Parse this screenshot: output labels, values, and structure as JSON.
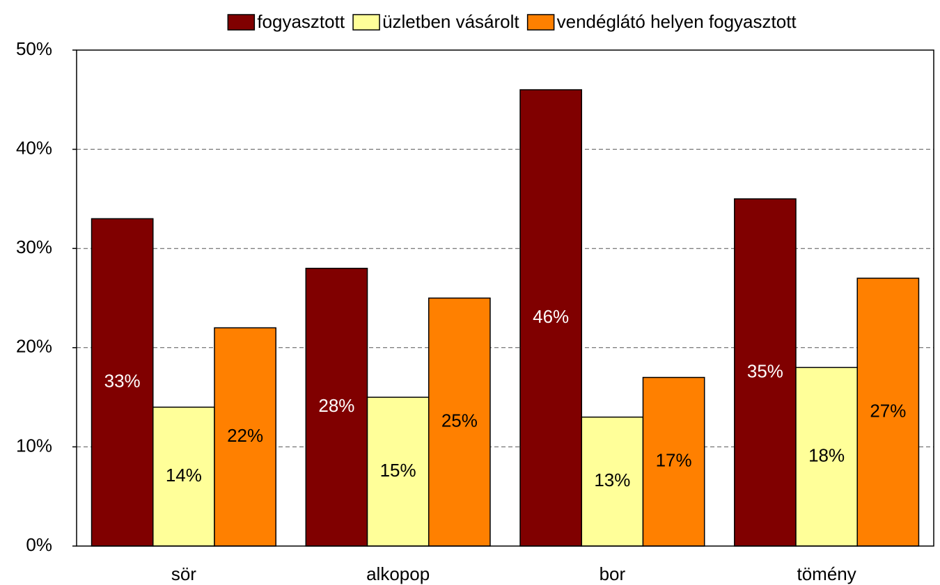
{
  "chart_data": {
    "type": "bar",
    "categories": [
      "sör",
      "alkopop",
      "bor",
      "tömény"
    ],
    "series": [
      {
        "name": "fogyasztott",
        "color": "#800000",
        "values": [
          33,
          28,
          46,
          35
        ],
        "value_labels": [
          "33%",
          "28%",
          "46%",
          "35%"
        ]
      },
      {
        "name": "üzletben vásárolt",
        "color": "#ffff99",
        "values": [
          14,
          15,
          13,
          18
        ],
        "value_labels": [
          "14%",
          "15%",
          "13%",
          "18%"
        ]
      },
      {
        "name": "vendéglátó helyen fogyasztott",
        "color": "#ff8000",
        "values": [
          22,
          25,
          17,
          27
        ],
        "value_labels": [
          "22%",
          "25%",
          "17%",
          "27%"
        ]
      }
    ],
    "ylim": [
      0,
      50
    ],
    "yticks": [
      {
        "value": 0,
        "label": "0%"
      },
      {
        "value": 10,
        "label": "10%"
      },
      {
        "value": 20,
        "label": "20%"
      },
      {
        "value": 30,
        "label": "30%"
      },
      {
        "value": 40,
        "label": "40%"
      },
      {
        "value": 50,
        "label": "50%"
      }
    ],
    "grid": true,
    "legend": "top"
  }
}
